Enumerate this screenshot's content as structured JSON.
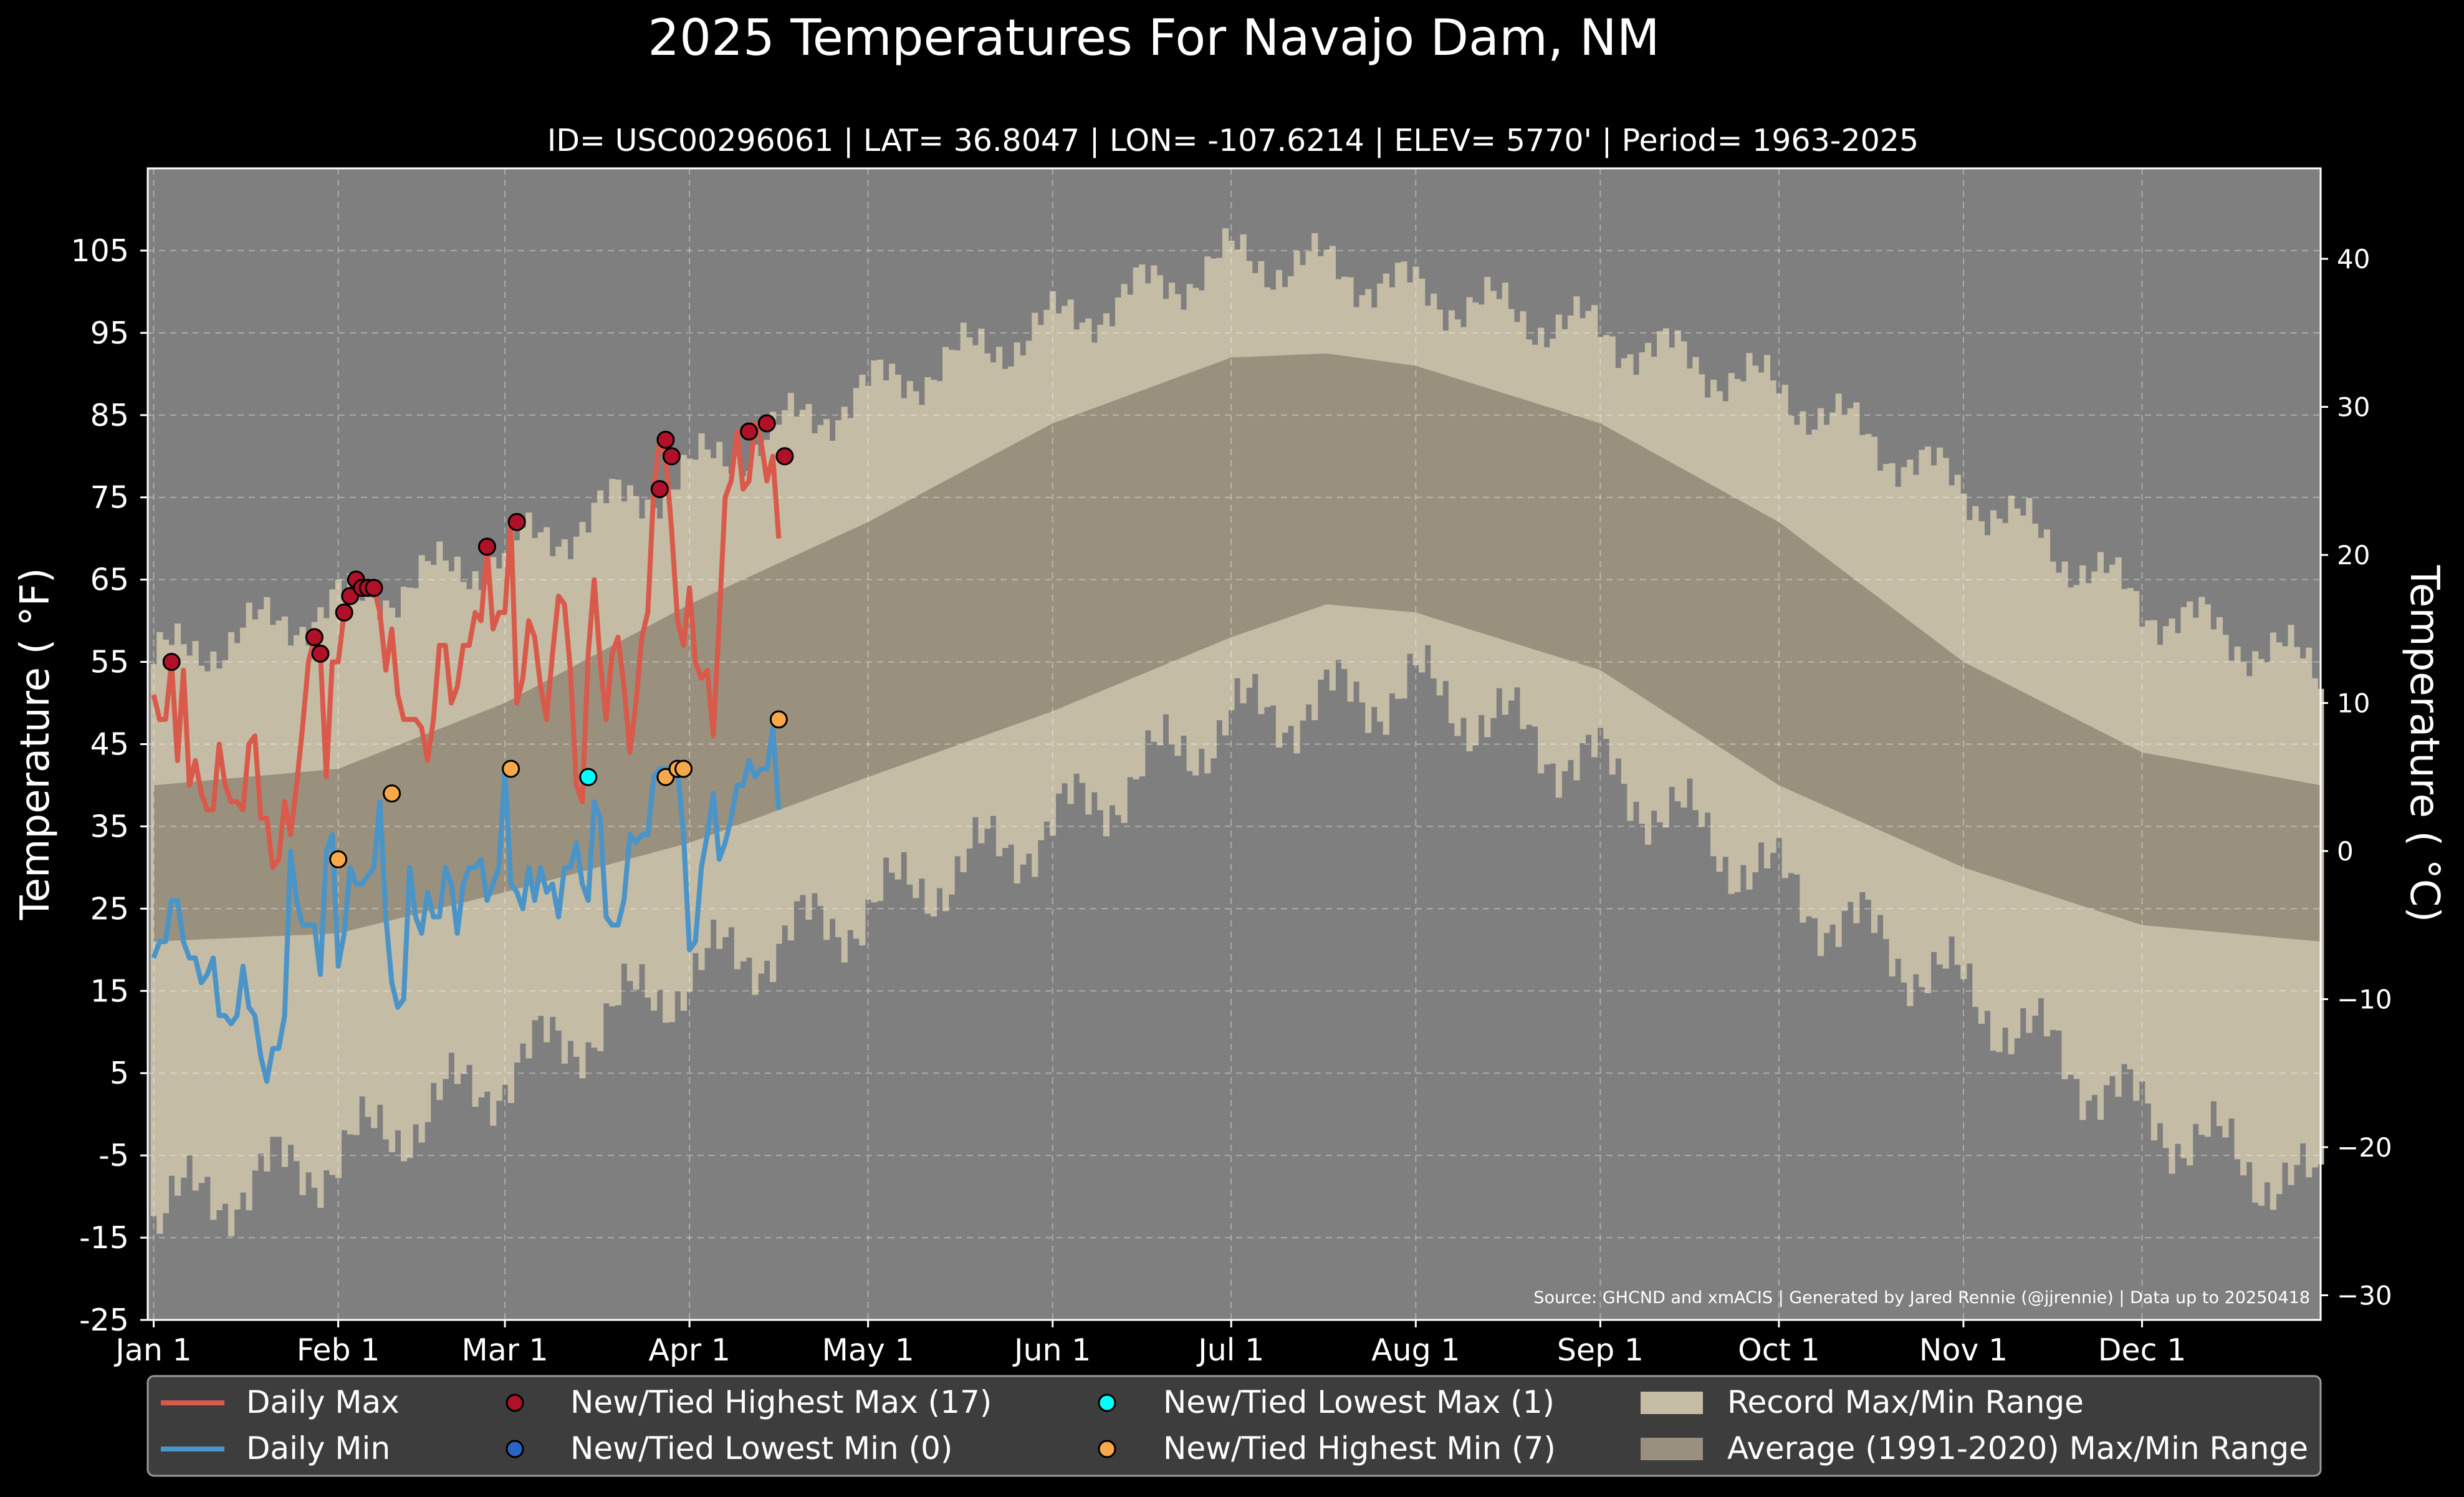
{
  "chart_data": {
    "type": "line",
    "title": "2025 Temperatures For Navajo Dam, NM",
    "subtitle": "ID= USC00296061 | LAT= 36.8047 | LON= -107.6214 | ELEV= 5770' | Period= 1963-2025",
    "ylabel": "Temperature ( °F)",
    "ylabel_right": "Temperature ( °C)",
    "source": "Source: GHCND and xmACIS | Generated by Jared Rennie (@jjrennie) | Data up to 20250418",
    "xlim": [
      0,
      365
    ],
    "ylim": [
      -25,
      115
    ],
    "yticks": [
      -25,
      -15,
      -5,
      5,
      15,
      25,
      35,
      45,
      55,
      65,
      75,
      85,
      95,
      105
    ],
    "ytick_labels": [
      "-25",
      "-15",
      "-5",
      "5",
      "15",
      "25",
      "35",
      "45",
      "55",
      "65",
      "75",
      "85",
      "95",
      "105"
    ],
    "yticks_right_c": [
      -30,
      -20,
      -10,
      0,
      10,
      20,
      30,
      40
    ],
    "ytick_labels_right": [
      "−30",
      "−20",
      "−10",
      "0",
      "10",
      "20",
      "30",
      "40"
    ],
    "xtick_days": [
      1,
      32,
      60,
      91,
      121,
      152,
      182,
      213,
      244,
      274,
      305,
      335
    ],
    "xtick_labels": [
      "Jan 1",
      "Feb 1",
      "Mar 1",
      "Apr 1",
      "May 1",
      "Jun 1",
      "Jul 1",
      "Aug 1",
      "Sep 1",
      "Oct 1",
      "Nov 1",
      "Dec 1"
    ],
    "grid": true,
    "legend_position": "bottom",
    "legend": {
      "daily_max": "Daily Max",
      "daily_min": "Daily Min",
      "high_max": "New/Tied Highest Max (17)",
      "low_min": "New/Tied Lowest Min (0)",
      "low_max": "New/Tied Lowest Max (1)",
      "high_min": "New/Tied Highest Min (7)",
      "record_range": "Record Max/Min Range",
      "normal_range": "Average (1991-2020) Max/Min Range"
    },
    "record_max_curve": {
      "day": [
        1,
        32,
        60,
        91,
        121,
        152,
        182,
        198,
        213,
        244,
        274,
        305,
        335,
        365
      ],
      "value": [
        55,
        62,
        68,
        78,
        88,
        96,
        104,
        103,
        100,
        95,
        88,
        76,
        62,
        54
      ]
    },
    "record_min_curve": {
      "day": [
        1,
        32,
        60,
        91,
        121,
        152,
        182,
        213,
        244,
        274,
        305,
        335,
        365
      ],
      "value": [
        -12,
        -5,
        5,
        17,
        25,
        35,
        48,
        52,
        42,
        28,
        15,
        0,
        -10
      ]
    },
    "normal_max": {
      "day": [
        1,
        32,
        60,
        91,
        121,
        152,
        182,
        198,
        213,
        244,
        274,
        305,
        335,
        365
      ],
      "value": [
        40,
        42,
        50,
        62,
        72,
        84,
        92,
        92.5,
        91,
        84,
        72,
        55,
        44,
        40
      ]
    },
    "normal_min": {
      "day": [
        1,
        32,
        60,
        91,
        121,
        152,
        182,
        198,
        213,
        244,
        274,
        305,
        335,
        365
      ],
      "value": [
        21,
        22,
        27,
        33,
        41,
        49,
        58,
        62,
        61,
        54,
        40,
        30,
        23,
        21
      ]
    },
    "series": [
      {
        "name": "Daily Max",
        "color": "#d95a4a",
        "values": [
          51,
          48,
          48,
          55,
          43,
          54,
          40,
          43,
          39,
          37,
          37,
          45,
          40,
          38,
          38,
          37,
          45,
          46,
          36,
          36,
          30,
          31,
          38,
          34,
          40,
          47,
          55,
          58,
          56,
          41,
          55,
          55,
          61,
          63,
          65,
          64,
          64,
          64,
          61,
          54,
          59,
          51,
          48,
          48,
          48,
          47,
          43,
          48,
          57,
          57,
          50,
          52,
          57,
          57,
          61,
          60,
          69,
          59,
          61,
          61,
          72,
          50,
          53,
          60,
          58,
          52,
          48,
          56,
          63,
          62,
          54,
          40,
          38,
          56,
          65,
          55,
          48,
          56,
          58,
          52,
          44,
          50,
          58,
          61,
          76,
          82,
          80,
          71,
          60,
          57,
          64,
          55,
          53,
          54,
          46,
          60,
          75,
          77,
          83,
          76,
          77,
          84,
          82,
          77,
          80,
          70
        ]
      },
      {
        "name": "Daily Min",
        "color": "#4a94c8",
        "values": [
          19,
          21,
          21,
          26,
          26,
          21,
          19,
          19,
          16,
          17,
          19,
          12,
          12,
          11,
          12,
          18,
          13,
          12,
          7,
          4,
          8,
          8,
          12,
          32,
          26,
          23,
          23,
          23,
          17,
          32,
          34,
          18,
          22,
          30,
          28,
          28,
          29,
          30,
          38,
          24,
          16,
          13,
          14,
          30,
          24,
          22,
          27,
          24,
          24,
          30,
          28,
          22,
          28,
          30,
          30,
          31,
          26,
          28,
          30,
          42,
          28,
          27,
          25,
          30,
          26,
          30,
          27,
          28,
          24,
          30,
          30,
          33,
          28,
          26,
          38,
          36,
          24,
          23,
          23,
          26,
          34,
          33,
          34,
          34,
          41,
          42,
          42,
          42,
          42,
          34,
          20,
          21,
          30,
          34,
          39,
          31,
          33,
          36,
          40,
          40,
          43,
          41,
          42,
          42,
          47,
          37
        ]
      }
    ],
    "markers": {
      "new_high_max": [
        [
          4,
          55
        ],
        [
          28,
          58
        ],
        [
          29,
          56
        ],
        [
          33,
          61
        ],
        [
          34,
          63
        ],
        [
          35,
          65
        ],
        [
          36,
          64
        ],
        [
          37,
          64
        ],
        [
          38,
          64
        ],
        [
          57,
          69
        ],
        [
          62,
          72
        ],
        [
          86,
          76
        ],
        [
          87,
          82
        ],
        [
          88,
          80
        ],
        [
          101,
          83
        ],
        [
          104,
          84
        ],
        [
          107,
          80
        ]
      ],
      "new_low_min": [],
      "new_low_max": [
        [
          74,
          41
        ]
      ],
      "new_high_min": [
        [
          32,
          31
        ],
        [
          41,
          39
        ],
        [
          61,
          42
        ],
        [
          87,
          41
        ],
        [
          89,
          42
        ],
        [
          90,
          42
        ],
        [
          106,
          48
        ]
      ]
    },
    "colors": {
      "background": "#000000",
      "plot_bg": "#7f7f7f",
      "record_range": "#c5bca6",
      "normal_range": "#9a907e",
      "daily_max": "#d95a4a",
      "daily_min": "#4a94c8",
      "high_max": "#b01028",
      "low_min": "#2864c8",
      "low_max": "#00ffff",
      "high_min": "#f7a84a",
      "legend_bg": "#3d3d3d"
    }
  }
}
